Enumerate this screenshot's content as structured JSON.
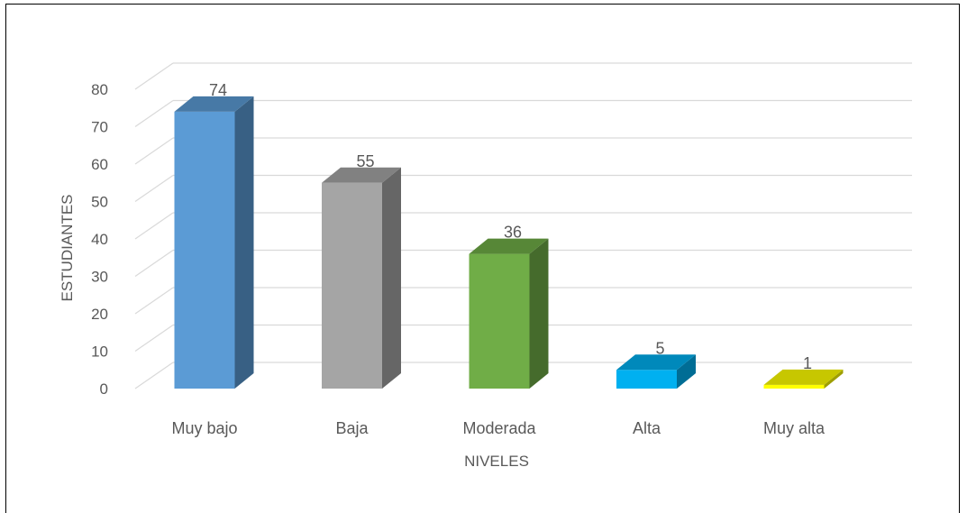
{
  "chart_data": {
    "type": "bar",
    "style": "3d-column",
    "categories": [
      "Muy bajo",
      "Baja",
      "Moderada",
      "Alta",
      "Muy alta"
    ],
    "values": [
      74,
      55,
      36,
      5,
      1
    ],
    "colors": [
      "#5b9bd5",
      "#a5a5a5",
      "#70ad47",
      "#00b0f0",
      "#ffff00"
    ],
    "data_labels": [
      "74",
      "55",
      "36",
      "5",
      "1"
    ],
    "xlabel": "NIVELES",
    "ylabel": "ESTUDIANTES",
    "ylim": [
      0,
      80
    ],
    "yticks": [
      0,
      10,
      20,
      30,
      40,
      50,
      60,
      70,
      80
    ],
    "grid": true,
    "legend": "none"
  }
}
